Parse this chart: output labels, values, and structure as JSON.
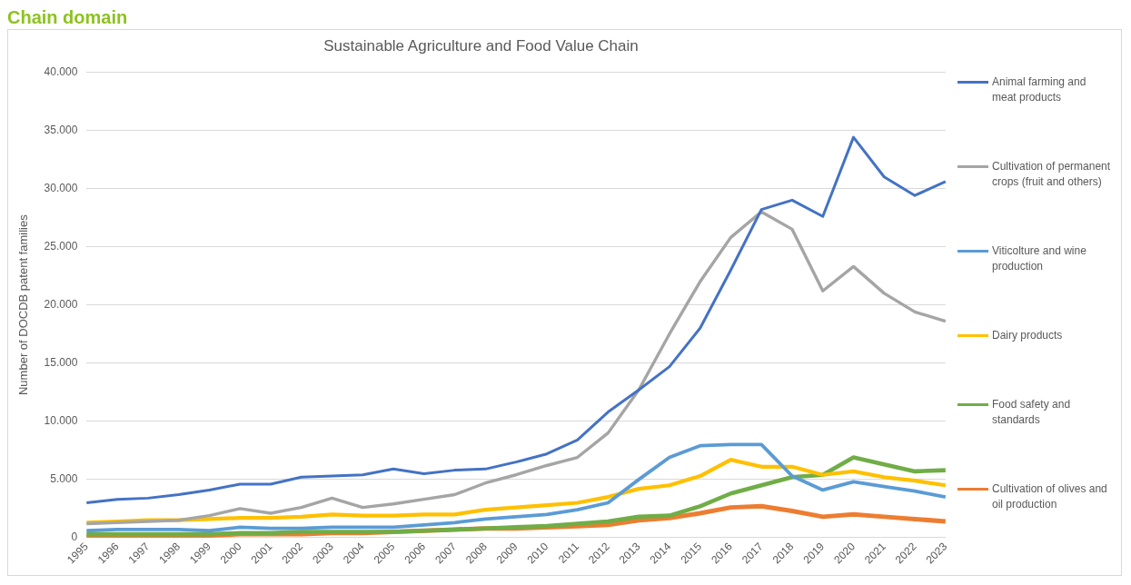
{
  "chart_data": {
    "type": "line",
    "title": "Sustainable Agriculture and Food Value Chain",
    "ylabel": "Number of DOCDB patent families",
    "annotations": [
      "Chain domain"
    ],
    "categories": [
      "1995",
      "1996",
      "1997",
      "1998",
      "1999",
      "2000",
      "2001",
      "2002",
      "2003",
      "2004",
      "2005",
      "2006",
      "2007",
      "2008",
      "2009",
      "2010",
      "2011",
      "2012",
      "2013",
      "2014",
      "2015",
      "2016",
      "2017",
      "2018",
      "2019",
      "2020",
      "2021",
      "2022",
      "2023"
    ],
    "series": [
      {
        "name": "Animal farming and meat products",
        "color": "#4472c4",
        "values": [
          3000,
          3300,
          3400,
          3700,
          4100,
          4600,
          4600,
          5200,
          5300,
          5400,
          5900,
          5500,
          5800,
          5900,
          6500,
          7200,
          8400,
          10800,
          12700,
          14700,
          18000,
          23000,
          28200,
          29000,
          27600,
          34400,
          31000,
          29400,
          30600
        ]
      },
      {
        "name": "Cultivation of permanent crops (fruit and others)",
        "color": "#a5a5a5",
        "values": [
          1200,
          1300,
          1400,
          1500,
          1900,
          2500,
          2100,
          2600,
          3400,
          2600,
          2900,
          3300,
          3700,
          4700,
          5400,
          6200,
          6900,
          9000,
          12700,
          17500,
          22000,
          25800,
          28000,
          26500,
          21200,
          23300,
          21000,
          19400,
          18600
        ]
      },
      {
        "name": "Viticolture and wine production",
        "color": "#5b9bd5",
        "values": [
          600,
          700,
          700,
          700,
          600,
          900,
          800,
          800,
          900,
          900,
          900,
          1100,
          1300,
          1600,
          1800,
          2000,
          2400,
          3000,
          5000,
          6900,
          7900,
          8000,
          8000,
          5300,
          4100,
          4800,
          4400,
          4000,
          3500
        ]
      },
      {
        "name": "Dairy products",
        "color": "#ffc000",
        "values": [
          1300,
          1400,
          1500,
          1500,
          1600,
          1700,
          1700,
          1800,
          2000,
          1900,
          1900,
          2000,
          2000,
          2400,
          2600,
          2800,
          3000,
          3500,
          4200,
          4500,
          5300,
          6700,
          6100,
          6100,
          5400,
          5700,
          5200,
          4900,
          4500
        ]
      },
      {
        "name": "Food safety and standards",
        "color": "#70ad47",
        "values": [
          300,
          300,
          300,
          300,
          300,
          400,
          400,
          500,
          500,
          500,
          500,
          600,
          700,
          800,
          900,
          1000,
          1200,
          1400,
          1800,
          1900,
          2700,
          3800,
          4500,
          5200,
          5400,
          6900,
          6300,
          5700,
          5800
        ]
      },
      {
        "name": "Cultivation of olives and oil production",
        "color": "#ed7d31",
        "values": [
          100,
          100,
          100,
          100,
          200,
          300,
          300,
          300,
          400,
          400,
          500,
          600,
          700,
          800,
          800,
          900,
          1000,
          1100,
          1500,
          1700,
          2100,
          2600,
          2700,
          2300,
          1800,
          2000,
          1800,
          1600,
          1400
        ]
      }
    ],
    "ylim": [
      0,
      40000
    ],
    "yticks": [
      0,
      {
        "value": 5000,
        "label": "5.000"
      },
      {
        "value": 10000,
        "label": "10.000"
      },
      {
        "value": 15000,
        "label": "15.000"
      },
      {
        "value": 20000,
        "label": "20.000"
      },
      {
        "value": 25000,
        "label": "25.000"
      },
      {
        "value": 30000,
        "label": "30.000"
      },
      {
        "value": 35000,
        "label": "35.000"
      },
      {
        "value": 40000,
        "label": "40.000"
      }
    ],
    "grid": "y",
    "legend": "right",
    "marker": "none",
    "line_style": "solid"
  }
}
